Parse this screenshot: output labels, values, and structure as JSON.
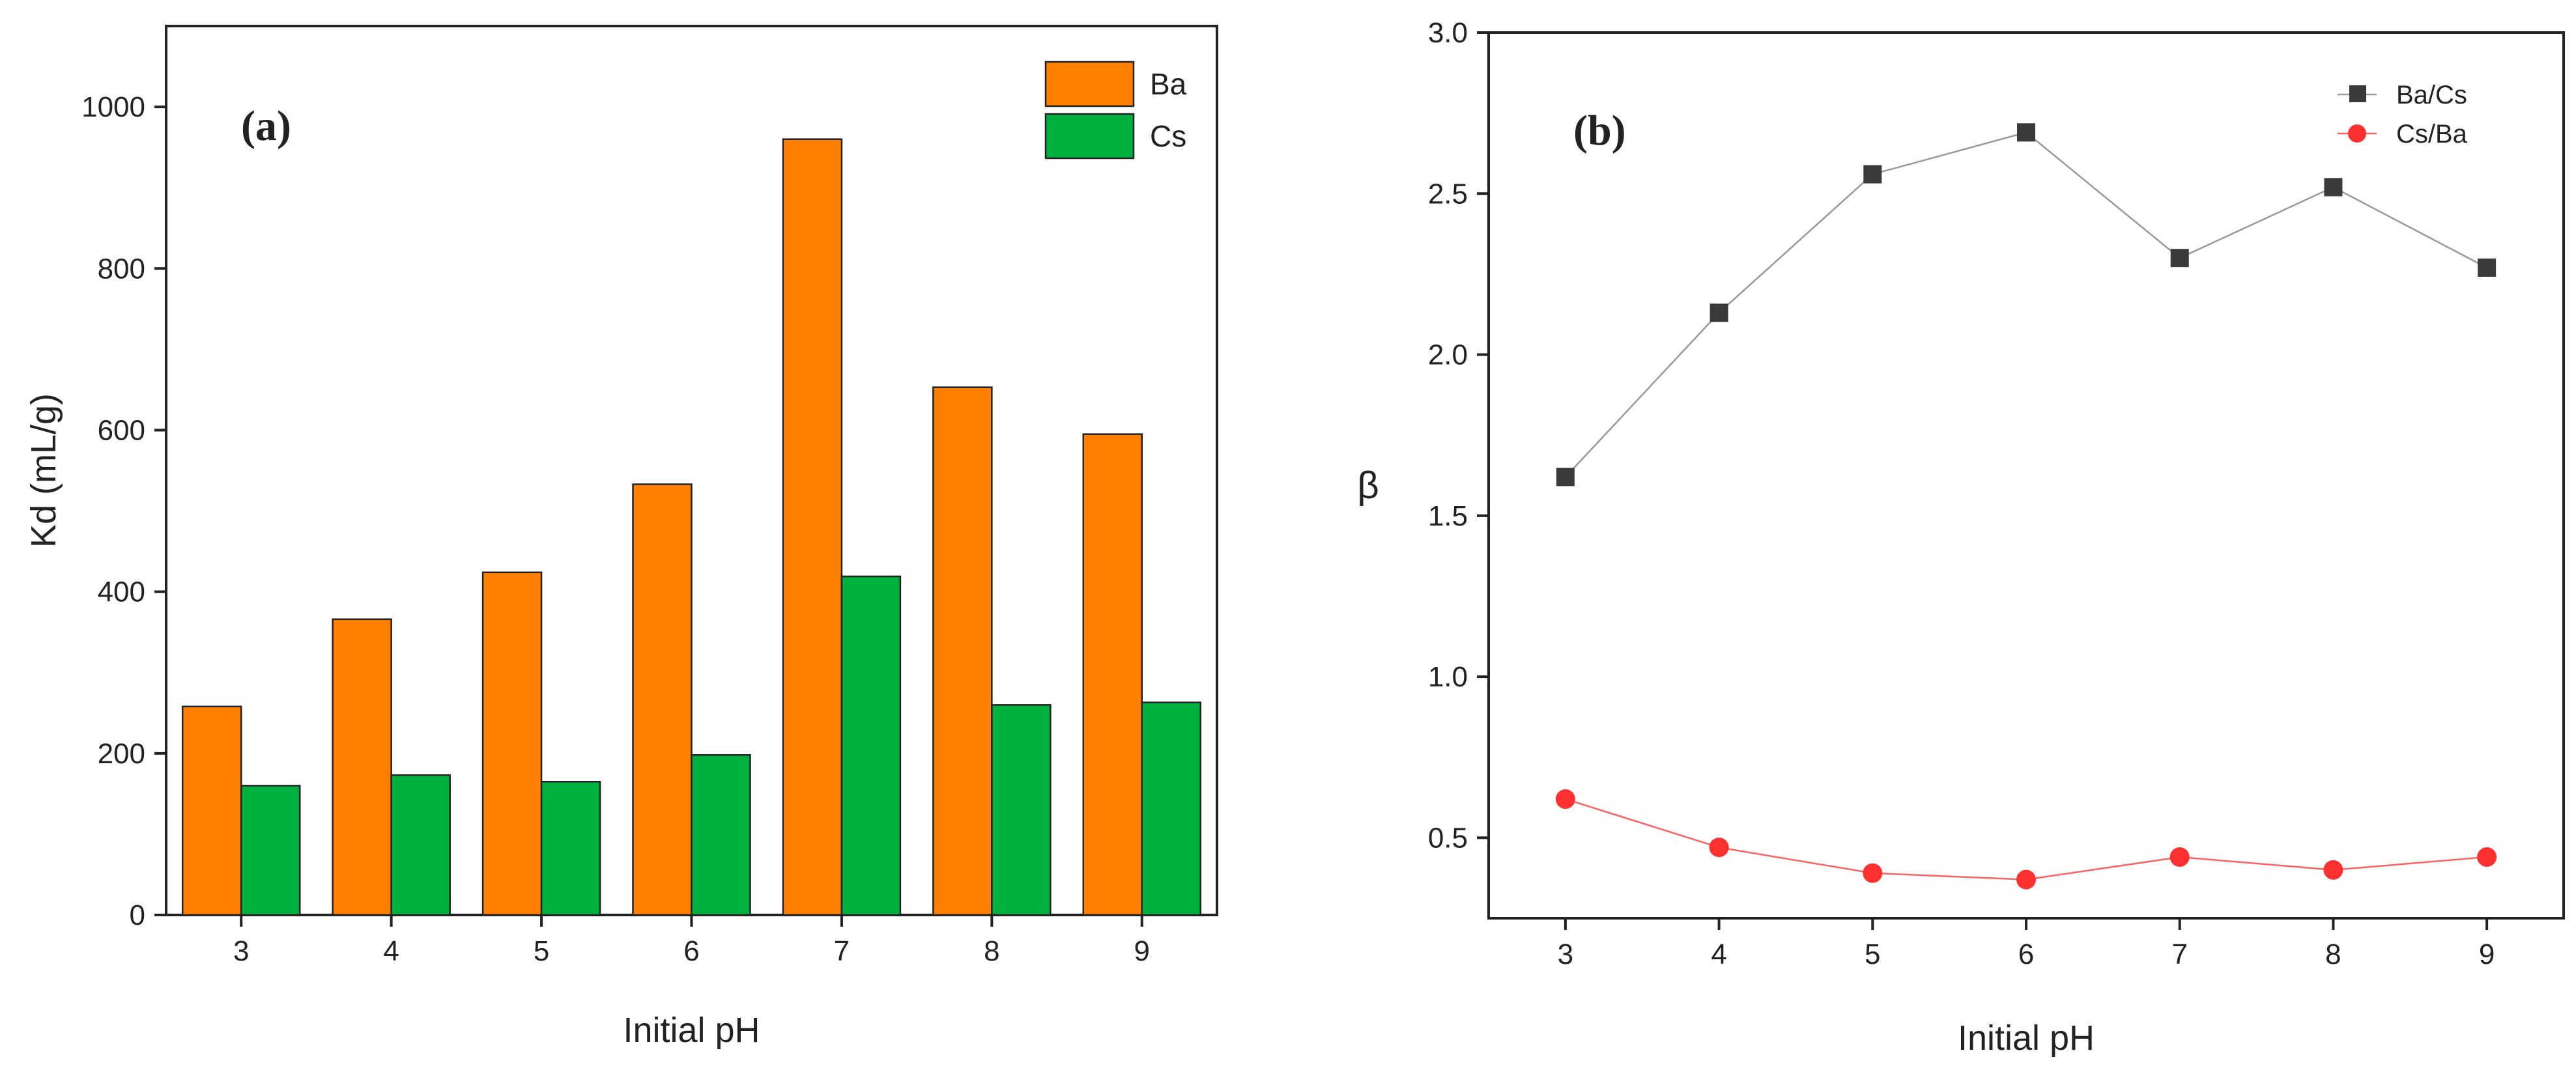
{
  "chart_data": [
    {
      "type": "bar",
      "panel_label": "(a)",
      "xlabel": "Initial pH",
      "ylabel": "Kd (mL/g)",
      "categories": [
        "3",
        "4",
        "5",
        "6",
        "7",
        "8",
        "9"
      ],
      "ylim": [
        0,
        1100
      ],
      "yticks": [
        0,
        200,
        400,
        600,
        800,
        1000
      ],
      "ytick_labels": [
        "0",
        "200",
        "400",
        "600",
        "800",
        "1000"
      ],
      "legend_position": "top-right",
      "series": [
        {
          "name": "Ba",
          "color": "#ff8000",
          "values": [
            258,
            366,
            424,
            533,
            960,
            653,
            595
          ]
        },
        {
          "name": "Cs",
          "color": "#00b140",
          "values": [
            160,
            173,
            165,
            198,
            419,
            260,
            263
          ]
        }
      ]
    },
    {
      "type": "line",
      "panel_label": "(b)",
      "xlabel": "Initial pH",
      "ylabel": "β",
      "x": [
        3,
        4,
        5,
        6,
        7,
        8,
        9
      ],
      "xtick_labels": [
        "3",
        "4",
        "5",
        "6",
        "7",
        "8",
        "9"
      ],
      "xlim": [
        2.5,
        9.5
      ],
      "ylim": [
        0.25,
        3.0
      ],
      "yticks": [
        0.5,
        1.0,
        1.5,
        2.0,
        2.5,
        3.0
      ],
      "ytick_labels": [
        "0.5",
        "1.0",
        "1.5",
        "2.0",
        "2.5",
        "3.0"
      ],
      "legend_position": "top-right",
      "series": [
        {
          "name": "Ba/Cs",
          "color": "#3a3a3a",
          "marker": "square",
          "values": [
            1.62,
            2.13,
            2.56,
            2.69,
            2.3,
            2.52,
            2.27
          ]
        },
        {
          "name": "Cs/Ba",
          "color": "#ff3030",
          "marker": "circle",
          "values": [
            0.62,
            0.47,
            0.39,
            0.37,
            0.44,
            0.4,
            0.44
          ]
        }
      ]
    }
  ]
}
